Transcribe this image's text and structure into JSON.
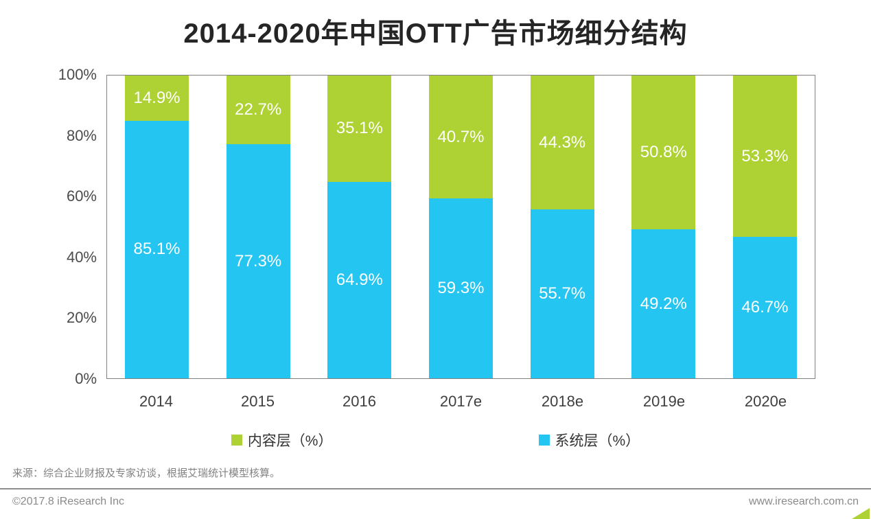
{
  "page": {
    "source_note": "来源：综合企业财报及专家访谈，根据艾瑞统计模型核算。",
    "footer_left": "©2017.8 iResearch Inc",
    "footer_right": "www.iresearch.com.cn"
  },
  "colors": {
    "content_layer_green": "#aed134",
    "system_layer_blue": "#24c5f0",
    "plot_border": "#808080",
    "title_text": "#252525",
    "axis_text": "#4b4b4b",
    "bar_label_text": "#ffffff"
  },
  "chart_data": {
    "type": "bar",
    "stacked": true,
    "title": "2014-2020年中国OTT广告市场细分结构",
    "categories": [
      "2014",
      "2015",
      "2016",
      "2017e",
      "2018e",
      "2019e",
      "2020e"
    ],
    "series": [
      {
        "name": "内容层（%）",
        "color": "#aed134",
        "stack_position": "top",
        "values": [
          14.9,
          22.7,
          35.1,
          40.7,
          44.3,
          50.8,
          53.3
        ]
      },
      {
        "name": "系统层（%）",
        "color": "#24c5f0",
        "stack_position": "bottom",
        "values": [
          85.1,
          77.3,
          64.9,
          59.3,
          55.7,
          49.2,
          46.7
        ]
      }
    ],
    "value_label_suffix": "%",
    "xlabel": "",
    "ylabel": "",
    "ylim": [
      0,
      100
    ],
    "ytick_values": [
      100,
      80,
      60,
      40,
      20,
      0
    ],
    "ytick_labels": [
      "100%",
      "80%",
      "60%",
      "40%",
      "20%",
      "0%"
    ],
    "grid": false,
    "legend_position": "bottom"
  }
}
